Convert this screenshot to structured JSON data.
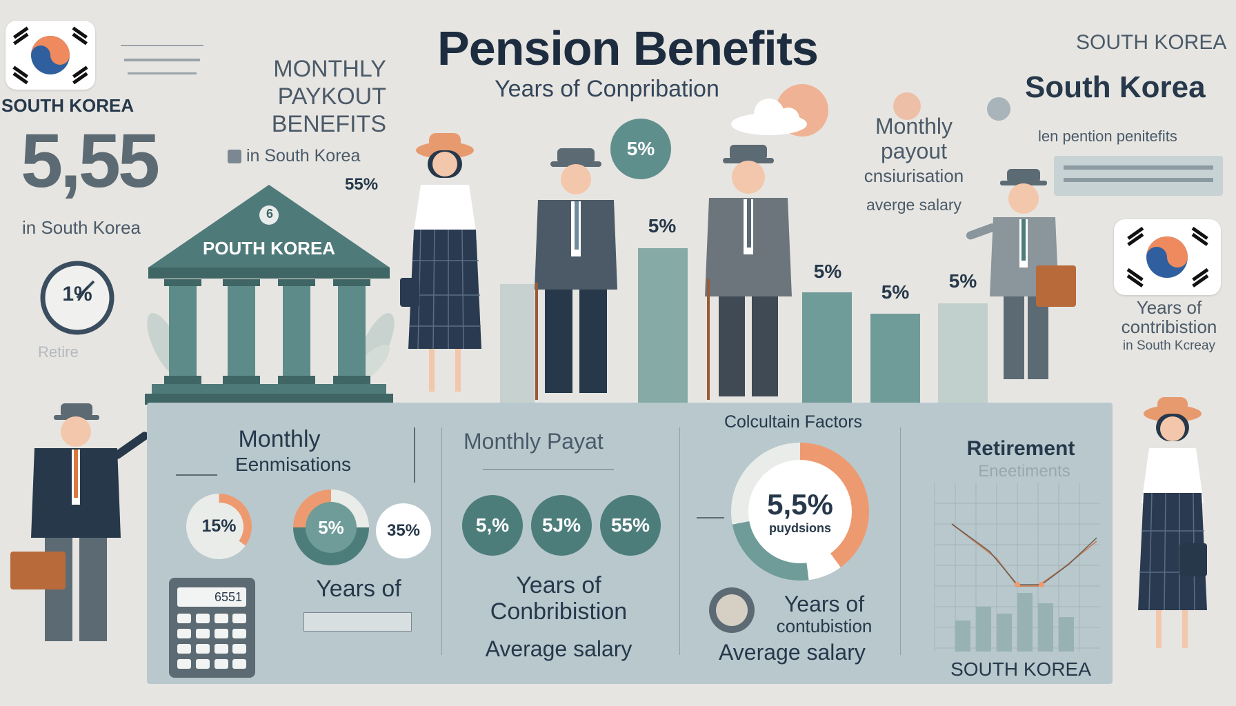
{
  "header": {
    "title": "Pension Benefits",
    "subtitle": "Years of Conpribation"
  },
  "left_column": {
    "flag_caption": "SOUTH KOREA",
    "big_number": "5,55",
    "big_number_caption": "in South Korea",
    "clock_text": "1%",
    "clock_caption": "Retire"
  },
  "upper_left_text": {
    "line1": "MONTHLY",
    "line2": "PAYKOUT",
    "line3": "BENEFITS",
    "caption": "in South Korea",
    "percent": "55%"
  },
  "building": {
    "label": "POUTH KOREA",
    "emblem": "6"
  },
  "bar_chart": {
    "top_badge": "5%",
    "bars": [
      {
        "label": "",
        "value": 0.42
      },
      {
        "label": "5%",
        "value": 0.6
      },
      {
        "label": "5%",
        "value": 0.42
      },
      {
        "label": "5%",
        "value": 0.33
      },
      {
        "label": "5%",
        "value": 0.38
      }
    ]
  },
  "upper_right_text": {
    "line1": "Monthly",
    "line2": "payout",
    "line3": "cnsiurisation",
    "line4": "averge salary"
  },
  "right_column": {
    "small_heading": "SOUTH KOREA",
    "large_heading": "South Korea",
    "caption": "len pention penitefits",
    "flag_caption1": "Years of",
    "flag_caption2": "contribistion",
    "flag_caption3": "in South Kcreay"
  },
  "panel": {
    "section1": {
      "title1": "Monthly",
      "title2": "Eenmisations",
      "ring1": "15%",
      "ring2": "5%",
      "ring3": "35%",
      "caption": "Years of",
      "calculator_display": "6551"
    },
    "section2": {
      "title": "Monthly Payat",
      "badge1": "5,%",
      "badge2": "5J%",
      "badge3": "55%",
      "caption1": "Years of",
      "caption2": "Conbribistion",
      "caption3": "Average salary"
    },
    "section3": {
      "title": "Colcultain Factors",
      "donut_value": "5,5%",
      "donut_caption": "puydsions",
      "caption1": "Years of",
      "caption2": "contubistion",
      "caption3": "Average salary"
    },
    "section4": {
      "title": "Retirement",
      "subtitle": "Eneetiments",
      "footer": "SOUTH KOREA"
    }
  },
  "colors": {
    "teal": "#6f9c99",
    "dark_teal": "#4c7d7a",
    "orange": "#ee9a70",
    "navy": "#26384a",
    "panel": "#b8c8cd"
  }
}
